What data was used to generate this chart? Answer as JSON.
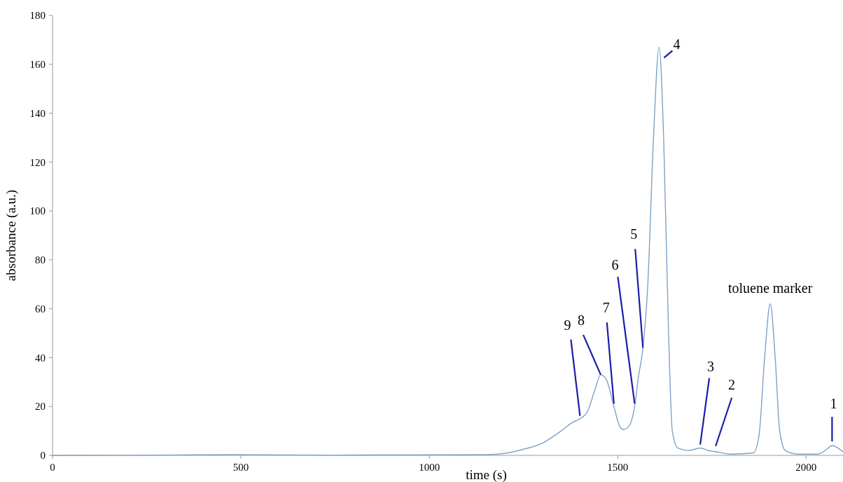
{
  "chart_data": {
    "type": "line",
    "xlabel": "time (s)",
    "ylabel": "absorbance (a.u.)",
    "xlim": [
      0,
      2098
    ],
    "xticks": [
      0,
      500,
      1000,
      1500,
      2000
    ],
    "ylim": [
      0,
      180
    ],
    "yticks": [
      0,
      20,
      40,
      60,
      80,
      100,
      120,
      140,
      160,
      180
    ],
    "grid": false,
    "series": [
      {
        "color": "#7fa3c6",
        "x": [
          0,
          250,
          500,
          750,
          1000,
          1150,
          1200,
          1250,
          1300,
          1350,
          1380,
          1400,
          1420,
          1440,
          1455,
          1470,
          1490,
          1505,
          1515,
          1530,
          1545,
          1555,
          1567,
          1580,
          1595,
          1610,
          1622,
          1635,
          1645,
          1660,
          1690,
          1719,
          1740,
          1760,
          1800,
          1860,
          1875,
          1890,
          1905,
          1918,
          1930,
          1945,
          1980,
          2030,
          2055,
          2069,
          2085,
          2098
        ],
        "values": [
          0,
          0.1,
          0.3,
          0.1,
          0.2,
          0.3,
          0.8,
          2.5,
          5,
          10,
          13.5,
          15,
          18,
          27,
          33,
          31,
          20,
          12,
          10.6,
          12,
          20,
          32,
          44,
          70,
          130,
          167,
          130,
          50,
          10,
          3,
          2,
          3,
          2,
          1.5,
          0.5,
          1,
          8,
          40,
          62,
          40,
          10,
          2,
          0.5,
          0.5,
          2.5,
          4,
          3,
          1.5
        ]
      }
    ],
    "annotations": [
      {
        "text": "9",
        "x": 1400,
        "y": 15
      },
      {
        "text": "8",
        "x": 1455,
        "y": 33
      },
      {
        "text": "7",
        "x": 1490,
        "y": 20
      },
      {
        "text": "6",
        "x": 1545,
        "y": 20
      },
      {
        "text": "5",
        "x": 1567,
        "y": 44
      },
      {
        "text": "4",
        "x": 1610,
        "y": 167
      },
      {
        "text": "3",
        "x": 1719,
        "y": 3
      },
      {
        "text": "2",
        "x": 1760,
        "y": 1.5
      },
      {
        "text": "1",
        "x": 2069,
        "y": 4
      },
      {
        "text": "toluene marker",
        "x": 1905,
        "y": 62
      }
    ]
  }
}
